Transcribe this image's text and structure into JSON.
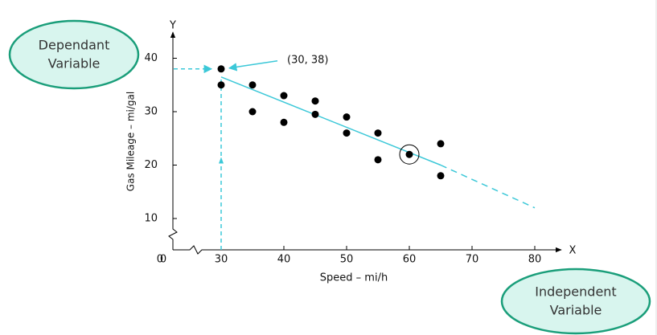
{
  "chart_data": {
    "type": "scatter",
    "x_label": "Speed – mi/h",
    "y_label": "Gas Mileage – mi/gal",
    "x_axis_letter": "X",
    "y_axis_letter": "Y",
    "x": [
      30,
      30,
      35,
      35,
      40,
      40,
      45,
      45,
      50,
      50,
      55,
      55,
      60,
      65,
      65
    ],
    "y": [
      38,
      35,
      35,
      30,
      33,
      28,
      32,
      29.5,
      29,
      26,
      26,
      21,
      22,
      24,
      18
    ],
    "color": "#000000",
    "highlight_index": 12,
    "trend_line": {
      "x": [
        30,
        65
      ],
      "y": [
        36.5,
        20
      ],
      "color": "#3cc8d8"
    },
    "trend_extension": {
      "x": [
        65,
        80
      ],
      "y": [
        20,
        12
      ],
      "color": "#3cc8d8"
    },
    "point_annotation": {
      "text": "(30, 38)",
      "x": 30,
      "y": 38
    },
    "xlim": [
      0,
      85
    ],
    "ylim": [
      0,
      45
    ],
    "xticks": [
      0,
      30,
      40,
      50,
      60,
      70,
      80
    ],
    "yticks": [
      0,
      10,
      20,
      30,
      40
    ],
    "axis_break": true,
    "grid": false,
    "callouts": [
      {
        "lines": [
          "Dependant",
          "Variable"
        ]
      },
      {
        "lines": [
          "Independent",
          "Variable"
        ]
      }
    ]
  }
}
